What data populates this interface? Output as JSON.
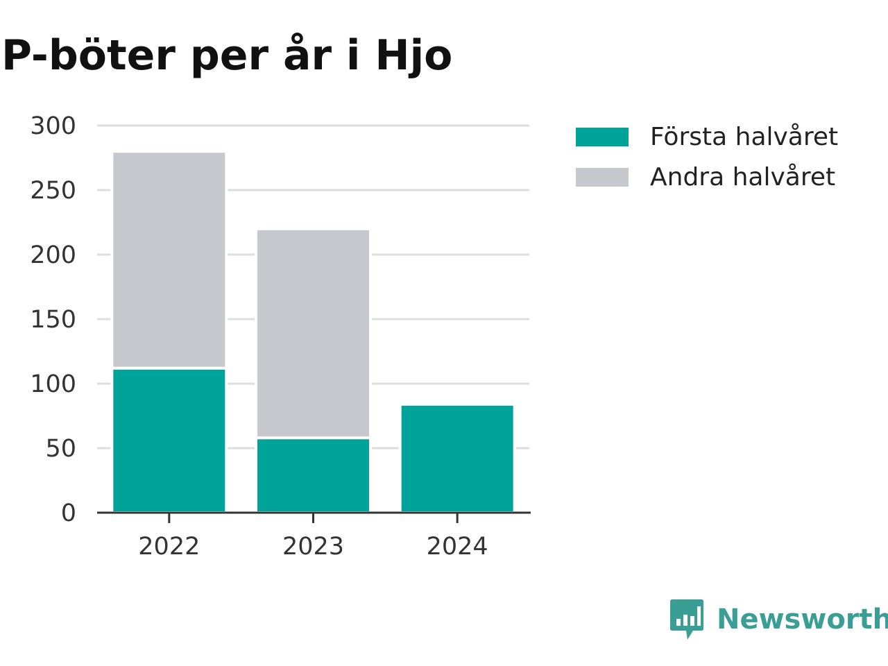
{
  "header": {
    "title": "P-böter per år i Hjo"
  },
  "chart_data": {
    "type": "bar",
    "stacked": true,
    "title": "P-böter per år i Hjo",
    "xlabel": "",
    "ylabel": "",
    "categories": [
      "2022",
      "2023",
      "2024"
    ],
    "series": [
      {
        "name": "Första halvåret",
        "values": [
          112,
          58,
          84
        ],
        "color": "#00a39a"
      },
      {
        "name": "Andra halvåret",
        "values": [
          168,
          162,
          0
        ],
        "color": "#c7c7ce"
      }
    ],
    "ylim": [
      0,
      300
    ],
    "yticks": [
      0,
      50,
      100,
      150,
      200,
      250,
      300
    ],
    "grid": true,
    "legend_position": "right"
  },
  "branding": {
    "name": "Newsworthy",
    "icon": "newsworthy-logo-icon",
    "color": "#3a9e94"
  }
}
